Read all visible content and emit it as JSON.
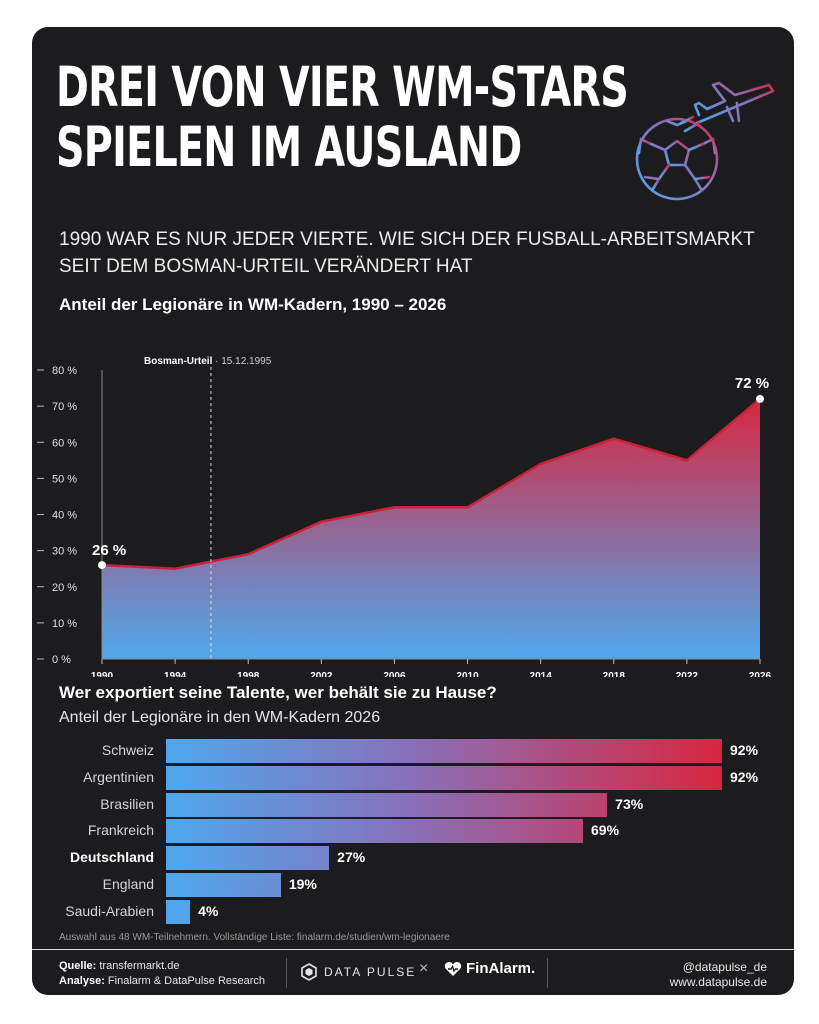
{
  "header": {
    "title_line1": "DREI VON VIER WM-STARS",
    "title_line2": "SPIELEN IM AUSLAND",
    "subtitle_line1": "1990 WAR ES NUR JEDER VIERTE. WIE SICH DER FUSBALL-ARBEITSMARKT",
    "subtitle_line2": "SEIT DEM BOSMAN-URTEIL VERÄNDERT HAT"
  },
  "icons": {
    "logo": "football-with-airplane-icon"
  },
  "colors": {
    "background": "#1c1c1e",
    "gradient_top": "#d8263f",
    "gradient_bottom": "#4fa8ec",
    "line": "#c92238",
    "text": "#ffffff"
  },
  "chart_data": [
    {
      "type": "area",
      "title": "Anteil der Legionäre in WM-Kadern, 1990 – 2026",
      "x": [
        1990,
        1994,
        1998,
        2002,
        2006,
        2010,
        2014,
        2018,
        2022,
        2026
      ],
      "values": [
        26,
        25,
        29,
        38,
        42,
        42,
        54,
        61,
        55,
        72
      ],
      "unit": "%",
      "ylim": [
        0,
        80
      ],
      "yticks": [
        0,
        10,
        20,
        30,
        40,
        50,
        60,
        70,
        80
      ],
      "ytick_labels": [
        "0 %",
        "10 %",
        "20 %",
        "30 %",
        "40 %",
        "50 %",
        "60 %",
        "70 %",
        "80 %"
      ],
      "xtick_labels": [
        "1990",
        "1994",
        "1998",
        "2002",
        "2006",
        "2010",
        "2014",
        "2018",
        "2022",
        "2026"
      ],
      "annotation": {
        "label": "Bosman-Urteil",
        "date": "· 15.12.1995",
        "x": 1995.96
      },
      "start_label": "26 %",
      "end_label": "72 %",
      "grid": false
    },
    {
      "type": "bar",
      "orientation": "horizontal",
      "title": "Wer exportiert seine Talente, wer behält sie zu Hause?",
      "subtitle": "Anteil der Legionäre in den WM-Kadern 2026",
      "categories": [
        "Schweiz",
        "Argentinien",
        "Brasilien",
        "Frankreich",
        "Deutschland",
        "England",
        "Saudi-Arabien"
      ],
      "values": [
        92,
        92,
        73,
        69,
        27,
        19,
        4
      ],
      "value_labels": [
        "92%",
        "92%",
        "73%",
        "69%",
        "27%",
        "19%",
        "4%"
      ],
      "highlight": "Deutschland",
      "note": "Auswahl aus 48 WM-Teilnehmern. Vollständige Liste: finalarm.de/studien/wm-legionaere"
    }
  ],
  "footer": {
    "source_label": "Quelle:",
    "source_value": "transfermarkt.de",
    "analysis_label": "Analyse:",
    "analysis_value": "Finalarm & DataPulse Research",
    "brand1": "DATA PULSE",
    "brand_separator": "×",
    "brand2": "FinAlarm.",
    "social_handle": "@datapulse_de",
    "website": "www.datapulse.de"
  }
}
